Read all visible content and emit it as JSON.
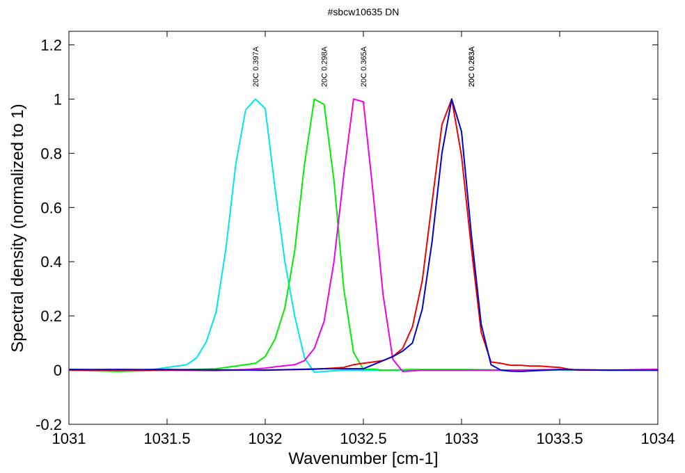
{
  "chart_data": {
    "type": "line",
    "title": "#sbcw10635 DN",
    "xlabel": "Wavenumber [cm-1]",
    "ylabel": "Spectral density (normalized to 1)",
    "xlim": [
      1031,
      1034
    ],
    "ylim": [
      -0.2,
      1.25
    ],
    "x_ticks": [
      1031,
      1031.5,
      1032,
      1032.5,
      1033,
      1033.5,
      1034
    ],
    "x_tick_labels": [
      "1031",
      "1031.5",
      "1032",
      "1032.5",
      "1033",
      "1033.5",
      "1034"
    ],
    "y_ticks": [
      -0.2,
      0,
      0.2,
      0.4,
      0.6,
      0.8,
      1,
      1.2
    ],
    "y_tick_labels": [
      "-0.2",
      "0",
      "0.2",
      "0.4",
      "0.6",
      "0.8",
      "1",
      "1.2"
    ],
    "grid": false,
    "legend": "none",
    "peak_labels": [
      {
        "x": 1031.95,
        "text": "20C 0.397A"
      },
      {
        "x": 1032.3,
        "text": "20C 0.298A"
      },
      {
        "x": 1032.5,
        "text": "20C 0.365A"
      },
      {
        "x": 1033.05,
        "text": "20C 0.283A"
      },
      {
        "x": 1033.05,
        "text": "20C 0.263A"
      }
    ],
    "series": [
      {
        "color": "#00e5ee",
        "x": [
          1031,
          1031.1,
          1031.2,
          1031.3,
          1031.4,
          1031.5,
          1031.55,
          1031.6,
          1031.65,
          1031.7,
          1031.75,
          1031.8,
          1031.85,
          1031.9,
          1031.95,
          1032,
          1032.05,
          1032.1,
          1032.15,
          1032.2,
          1032.25,
          1032.3,
          1032.4,
          1032.5,
          1032.75,
          1033,
          1033.25,
          1033.5,
          1033.75,
          1034
        ],
        "y": [
          0.003,
          0.001,
          0,
          -0.002,
          0,
          0.01,
          0.015,
          0.02,
          0.045,
          0.105,
          0.215,
          0.45,
          0.76,
          0.96,
          1.0,
          0.965,
          0.67,
          0.4,
          0.2,
          0.045,
          -0.008,
          -0.005,
          0,
          0,
          0,
          0.001,
          0,
          0.001,
          0,
          0
        ]
      },
      {
        "color": "#00ee00",
        "x": [
          1031,
          1031.25,
          1031.5,
          1031.75,
          1031.8,
          1031.85,
          1031.9,
          1031.95,
          1032,
          1032.05,
          1032.1,
          1032.15,
          1032.2,
          1032.25,
          1032.3,
          1032.35,
          1032.4,
          1032.45,
          1032.5,
          1032.55,
          1032.6,
          1032.75,
          1033,
          1033.25,
          1033.5,
          1033.75,
          1034
        ],
        "y": [
          0,
          -0.005,
          0,
          0.005,
          0.01,
          0.015,
          0.02,
          0.025,
          0.05,
          0.115,
          0.23,
          0.44,
          0.76,
          1.0,
          0.98,
          0.7,
          0.3,
          0.065,
          0.003,
          0.003,
          0,
          0.002,
          0.002,
          0,
          0.001,
          0,
          0
        ]
      },
      {
        "color": "#ee00ee",
        "x": [
          1031,
          1031.25,
          1031.5,
          1031.75,
          1031.9,
          1032,
          1032.05,
          1032.1,
          1032.15,
          1032.2,
          1032.25,
          1032.3,
          1032.35,
          1032.4,
          1032.45,
          1032.5,
          1032.55,
          1032.6,
          1032.65,
          1032.7,
          1032.75,
          1032.8,
          1033,
          1033.25,
          1033.5,
          1033.75,
          1034
        ],
        "y": [
          0,
          0.002,
          0,
          -0.002,
          0.002,
          0.007,
          0.012,
          0.016,
          0.02,
          0.035,
          0.08,
          0.18,
          0.4,
          0.72,
          1.0,
          0.99,
          0.65,
          0.28,
          0.04,
          -0.005,
          -0.003,
          0,
          0,
          0,
          0.002,
          0,
          0.003
        ]
      },
      {
        "color": "#ee0000",
        "x": [
          1031,
          1031.5,
          1032,
          1032.25,
          1032.4,
          1032.45,
          1032.5,
          1032.55,
          1032.6,
          1032.65,
          1032.7,
          1032.75,
          1032.8,
          1032.85,
          1032.9,
          1032.95,
          1033,
          1033.05,
          1033.1,
          1033.15,
          1033.2,
          1033.25,
          1033.3,
          1033.35,
          1033.4,
          1033.45,
          1033.5,
          1033.55,
          1033.6,
          1033.75,
          1034
        ],
        "y": [
          0,
          0,
          0,
          0.003,
          0.01,
          0.02,
          0.025,
          0.03,
          0.035,
          0.05,
          0.08,
          0.16,
          0.33,
          0.62,
          0.905,
          1.0,
          0.79,
          0.45,
          0.14,
          0.03,
          0.025,
          0.018,
          0.018,
          0.015,
          0.015,
          0.012,
          0.01,
          0.003,
          0,
          0,
          0
        ]
      },
      {
        "color": "#0000cc",
        "x": [
          1031,
          1031.5,
          1032,
          1032.3,
          1032.5,
          1032.55,
          1032.6,
          1032.65,
          1032.7,
          1032.75,
          1032.8,
          1032.85,
          1032.9,
          1032.95,
          1033,
          1033.05,
          1033.1,
          1033.15,
          1033.2,
          1033.25,
          1033.3,
          1033.5,
          1033.75,
          1034
        ],
        "y": [
          0.002,
          0.002,
          0,
          0.005,
          0.005,
          0.02,
          0.035,
          0.05,
          0.07,
          0.1,
          0.225,
          0.475,
          0.8,
          1.0,
          0.88,
          0.5,
          0.17,
          0.02,
          0,
          -0.004,
          -0.005,
          0.002,
          0,
          0
        ]
      }
    ]
  }
}
